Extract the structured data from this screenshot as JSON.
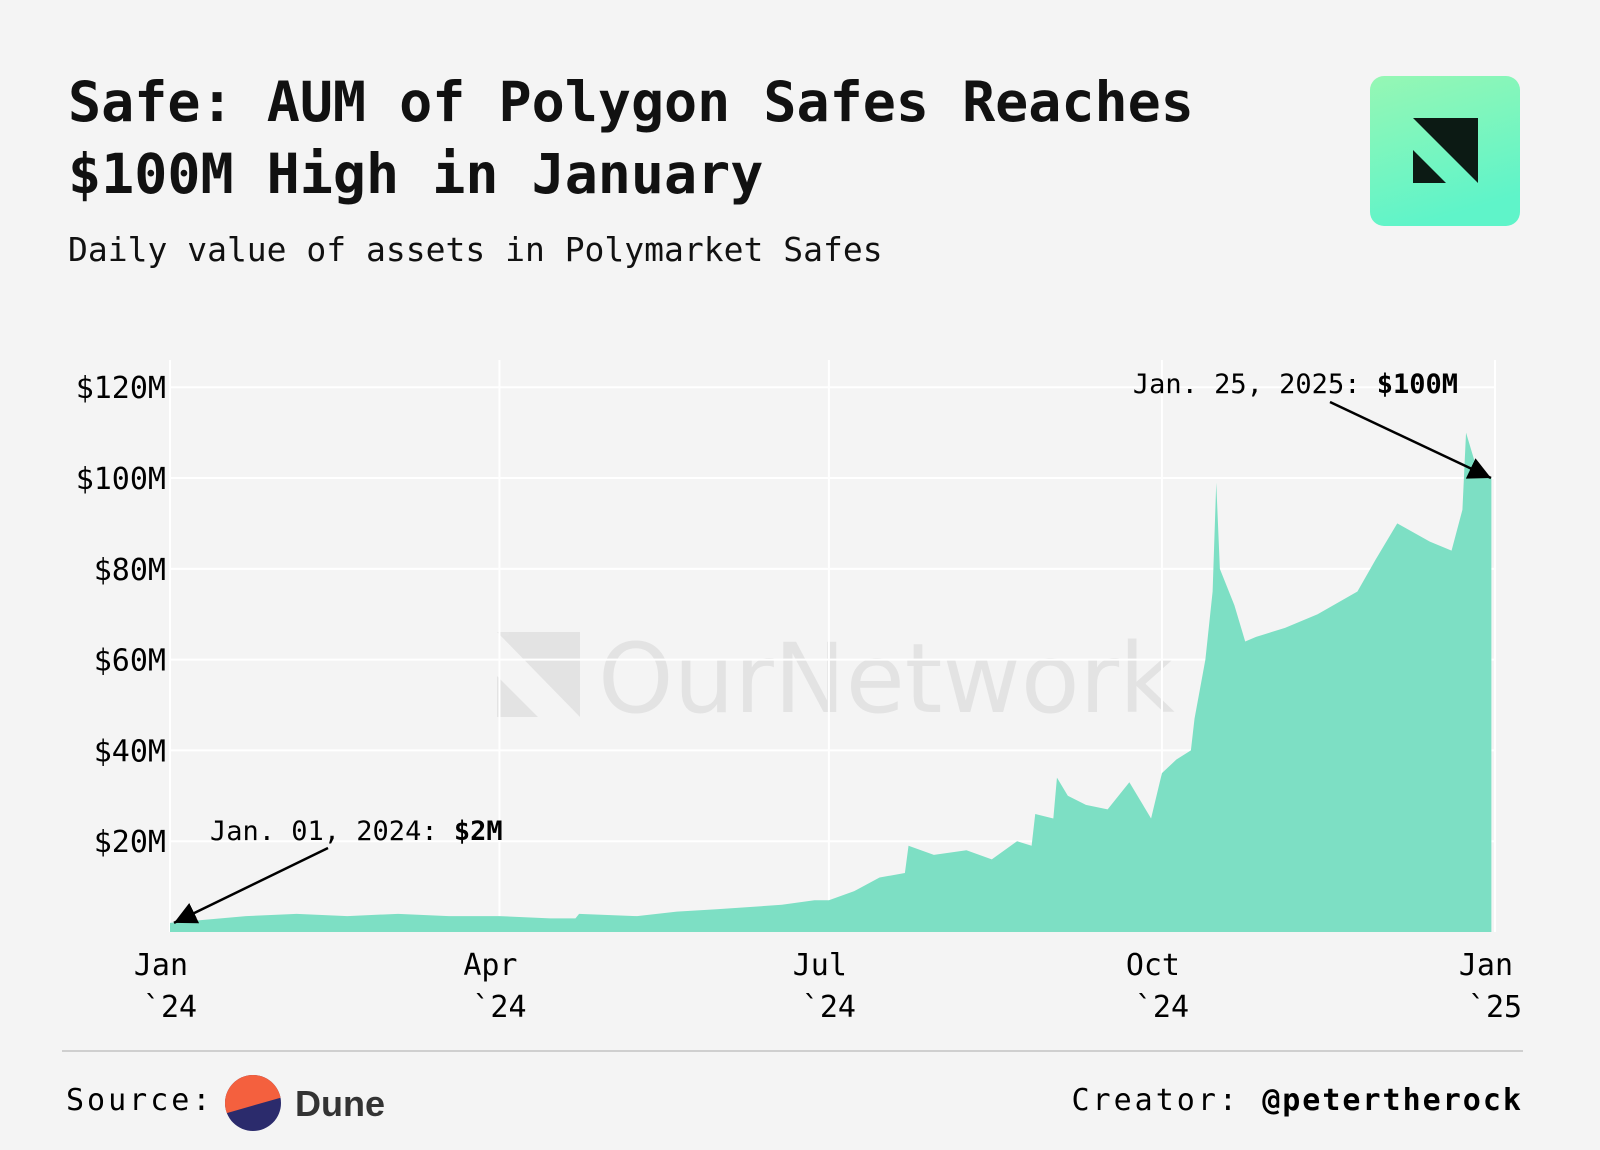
{
  "chart_data": {
    "type": "area",
    "title_prefix": "Safe:",
    "title": "AUM of Polygon Safes Reaches $100M High in January",
    "subtitle": "Daily value of assets in Polymarket Safes",
    "watermark": "OurNetwork",
    "color": "#7ddfc4",
    "grid": true,
    "x": [
      "2024-01-01",
      "2024-01-08",
      "2024-01-22",
      "2024-02-05",
      "2024-02-19",
      "2024-03-04",
      "2024-03-18",
      "2024-04-01",
      "2024-04-15",
      "2024-04-22",
      "2024-04-23",
      "2024-05-09",
      "2024-05-20",
      "2024-05-31",
      "2024-06-18",
      "2024-06-27",
      "2024-07-01",
      "2024-07-08",
      "2024-07-15",
      "2024-07-22",
      "2024-07-23",
      "2024-07-30",
      "2024-08-08",
      "2024-08-15",
      "2024-08-22",
      "2024-08-26",
      "2024-08-27",
      "2024-09-01",
      "2024-09-02",
      "2024-09-05",
      "2024-09-10",
      "2024-09-16",
      "2024-09-22",
      "2024-09-28",
      "2024-10-01",
      "2024-10-05",
      "2024-10-09",
      "2024-10-10",
      "2024-10-13",
      "2024-10-15",
      "2024-10-16",
      "2024-10-17",
      "2024-10-21",
      "2024-10-24",
      "2024-10-27",
      "2024-11-04",
      "2024-11-13",
      "2024-11-24",
      "2024-11-29",
      "2024-12-05",
      "2024-12-14",
      "2024-12-20",
      "2024-12-23",
      "2024-12-24",
      "2024-12-27",
      "2024-12-31"
    ],
    "values": [
      2,
      2.5,
      3.5,
      4,
      3.5,
      4,
      3.5,
      3.5,
      3,
      3,
      4,
      3.5,
      4.5,
      5,
      6,
      7,
      7,
      9,
      12,
      13,
      19,
      17,
      18,
      16,
      20,
      19,
      26,
      25,
      34,
      30,
      28,
      27,
      33,
      25,
      35,
      38,
      40,
      47,
      60,
      75,
      99,
      80,
      72,
      64,
      65,
      67,
      70,
      75,
      82,
      90,
      86,
      84,
      93,
      110,
      102,
      100
    ],
    "xlim": [
      "2024-01-01",
      "2025-01-01"
    ],
    "xticks": [
      {
        "value": "2024-01-01",
        "label": "Jan `24"
      },
      {
        "value": "2024-04-01",
        "label": "Apr `24"
      },
      {
        "value": "2024-07-01",
        "label": "Jul `24"
      },
      {
        "value": "2024-10-01",
        "label": "Oct `24"
      },
      {
        "value": "2025-01-01",
        "label": "Jan `25"
      }
    ],
    "ylim": [
      0,
      126
    ],
    "yticks": [
      {
        "value": 20,
        "label": "$20M"
      },
      {
        "value": 40,
        "label": "$40M"
      },
      {
        "value": 60,
        "label": "$60M"
      },
      {
        "value": 80,
        "label": "$80M"
      },
      {
        "value": 100,
        "label": "$100M"
      },
      {
        "value": 120,
        "label": "$120M"
      }
    ],
    "annotations": [
      {
        "label": "Jan. 01, 2024:",
        "value": 2,
        "value_label": "$2M"
      },
      {
        "label": "Jan. 25, 2025:",
        "value": 100,
        "value_label": "$100M"
      }
    ],
    "footer": {
      "source_label": "Source:",
      "source": "Dune",
      "creator_label": "Creator:",
      "creator": "@petertherock"
    }
  }
}
